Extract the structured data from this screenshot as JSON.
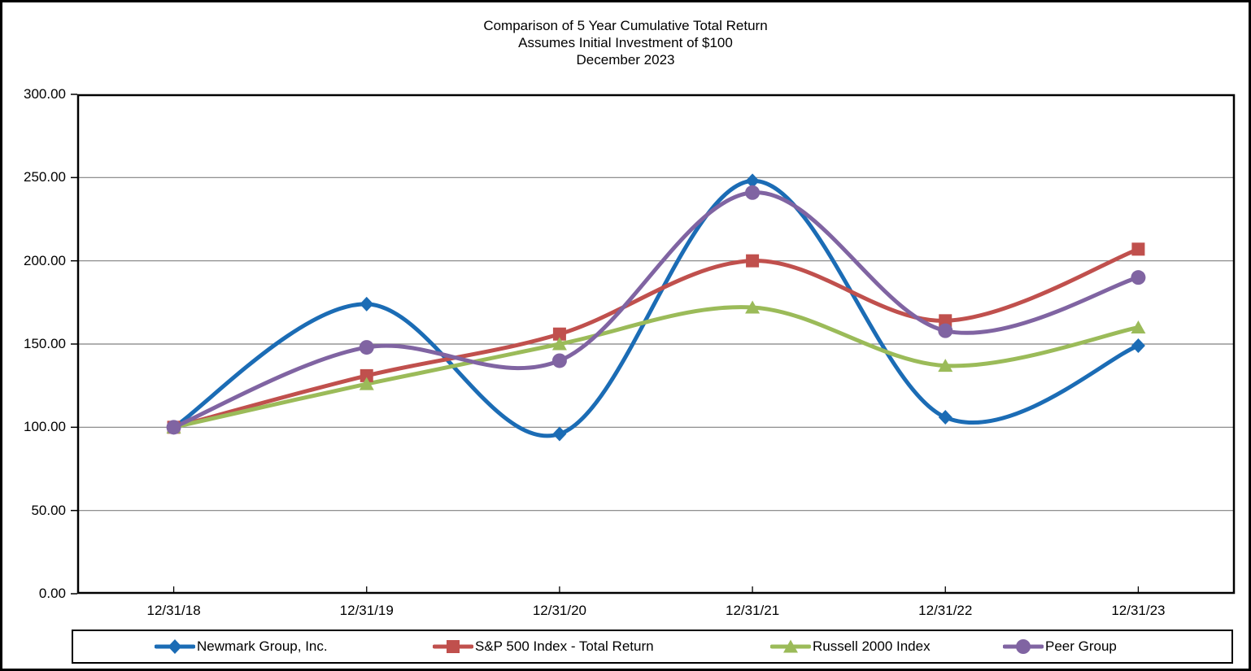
{
  "chart_data": {
    "type": "line",
    "title": "Comparison of 5 Year Cumulative Total Return",
    "subtitle": "Assumes Initial Investment of $100",
    "date_label": "December 2023",
    "categories": [
      "12/31/18",
      "12/31/19",
      "12/31/20",
      "12/31/21",
      "12/31/22",
      "12/31/23"
    ],
    "series": [
      {
        "name": "Newmark Group, Inc.",
        "color": "#1b6cb5",
        "marker": "diamond",
        "values": [
          100,
          174,
          96,
          248,
          106,
          149
        ]
      },
      {
        "name": "S&P 500 Index - Total Return",
        "color": "#c0504d",
        "marker": "square",
        "values": [
          100,
          131,
          156,
          200,
          164,
          207
        ]
      },
      {
        "name": "Russell 2000 Index",
        "color": "#9bbb59",
        "marker": "triangle",
        "values": [
          100,
          126,
          150,
          172,
          137,
          160
        ]
      },
      {
        "name": "Peer Group",
        "color": "#8064a2",
        "marker": "circle",
        "values": [
          100,
          148,
          140,
          241,
          158,
          190
        ]
      }
    ],
    "ylim": [
      0,
      300
    ],
    "y_ticks": [
      {
        "value": 0,
        "label": "0.00"
      },
      {
        "value": 50,
        "label": "50.00"
      },
      {
        "value": 100,
        "label": "100.00"
      },
      {
        "value": 150,
        "label": "150.00"
      },
      {
        "value": 200,
        "label": "200.00"
      },
      {
        "value": 250,
        "label": "250.00"
      },
      {
        "value": 300,
        "label": "300.00"
      }
    ],
    "grid": "horizontal",
    "gridline_color": "#808080",
    "axis_color": "#000000",
    "legend_position": "bottom",
    "line_style": "smooth"
  }
}
